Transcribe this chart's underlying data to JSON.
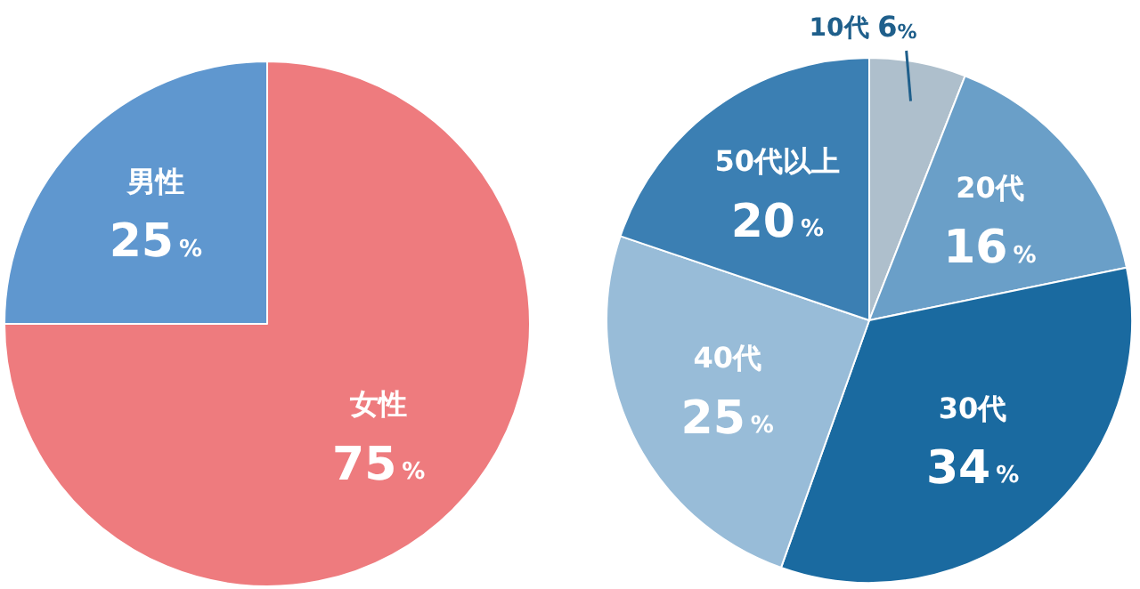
{
  "chart_data": [
    {
      "type": "pie",
      "categories": [
        "女性",
        "男性"
      ],
      "values": [
        75,
        25
      ],
      "colors": [
        "#ee7b7e",
        "#5f97cf"
      ],
      "value_labels": [
        "75%",
        "25%"
      ],
      "legend": false
    },
    {
      "type": "pie",
      "categories": [
        "10代",
        "20代",
        "30代",
        "40代",
        "50代以上"
      ],
      "values": [
        6,
        16,
        34,
        25,
        20
      ],
      "colors": [
        "#aebfcc",
        "#6a9fc8",
        "#1a6aa0",
        "#98bcd8",
        "#3b7fb3"
      ],
      "value_labels": [
        "6%",
        "16%",
        "34%",
        "25%",
        "20%"
      ],
      "legend": false
    }
  ]
}
